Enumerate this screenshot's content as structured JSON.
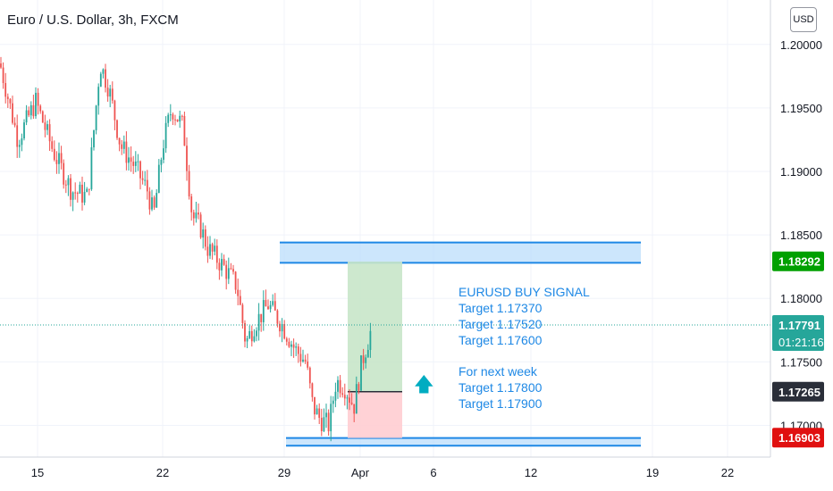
{
  "header": {
    "title": "Euro / U.S. Dollar, 3h, FXCM"
  },
  "scale": {
    "currency_label": "USD"
  },
  "badges": {
    "resistance": "1.18292",
    "last_price": "1.17791",
    "countdown": "01:21:16",
    "entry": "1.17265",
    "support": "1.16903",
    "colors": {
      "green": "#00a000",
      "teal": "#26a69a",
      "dark": "#2a2e39",
      "red": "#e01010"
    }
  },
  "annotations": {
    "signal_title": "EURUSD BUY SIGNAL",
    "targets_1": [
      "Target 1.17370",
      "Target 1.17520",
      "Target 1.17600"
    ],
    "next_week": "For next week",
    "targets_2": [
      "Target 1.17800",
      "Target 1.17900"
    ],
    "arrow_icon": "up-arrow-icon"
  },
  "chart_data": {
    "type": "candlestick",
    "title": "Euro / U.S. Dollar, 3h, FXCM",
    "ylim": [
      1.1675,
      1.2035
    ],
    "y_ticks": [
      1.17,
      1.175,
      1.18,
      1.185,
      1.19,
      1.195,
      1.2
    ],
    "y_tick_labels": [
      "1.17000",
      "1.17500",
      "1.18000",
      "1.18500",
      "1.19000",
      "1.19500",
      "1.20000"
    ],
    "x_tick_labels": [
      "15",
      "22",
      "29",
      "Apr",
      "6",
      "12",
      "19",
      "22"
    ],
    "price_path": [
      [
        0,
        1.1985
      ],
      [
        20,
        1.1925
      ],
      [
        40,
        1.1955
      ],
      [
        60,
        1.1915
      ],
      [
        80,
        1.1885
      ],
      [
        98,
        1.188
      ],
      [
        112,
        1.1985
      ],
      [
        122,
        1.1965
      ],
      [
        135,
        1.192
      ],
      [
        150,
        1.1905
      ],
      [
        165,
        1.1885
      ],
      [
        172,
        1.1865
      ],
      [
        182,
        1.192
      ],
      [
        192,
        1.195
      ],
      [
        205,
        1.1935
      ],
      [
        215,
        1.1865
      ],
      [
        225,
        1.1855
      ],
      [
        232,
        1.184
      ],
      [
        250,
        1.1825
      ],
      [
        265,
        1.181
      ],
      [
        275,
        1.1765
      ],
      [
        285,
        1.178
      ],
      [
        300,
        1.1795
      ],
      [
        315,
        1.178
      ],
      [
        330,
        1.176
      ],
      [
        342,
        1.175
      ],
      [
        350,
        1.1715
      ],
      [
        358,
        1.1705
      ],
      [
        368,
        1.17
      ],
      [
        376,
        1.1735
      ],
      [
        386,
        1.173
      ],
      [
        396,
        1.1715
      ],
      [
        405,
        1.175
      ],
      [
        418,
        1.1782
      ]
    ],
    "zones": [
      {
        "kind": "resistance",
        "low": 1.1828,
        "high": 1.1844
      },
      {
        "kind": "support",
        "low": 1.1684,
        "high": 1.169
      }
    ],
    "position": {
      "entry": 1.17265,
      "target": 1.1829,
      "stop": 1.169
    },
    "last_price": 1.17791
  }
}
